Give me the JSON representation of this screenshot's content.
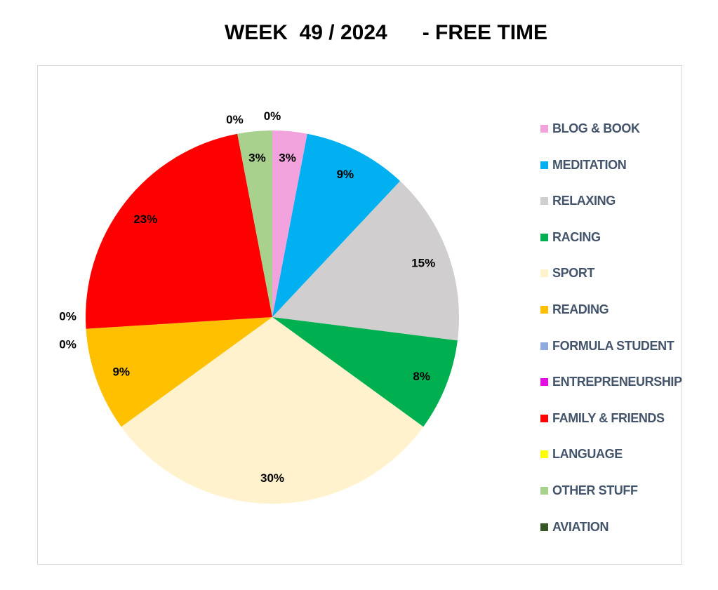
{
  "chart_data": {
    "type": "pie",
    "title": "WEEK  49 / 2024      - FREE TIME",
    "legend_position": "right",
    "slices": [
      {
        "name": "BLOG & BOOK",
        "value": 3,
        "label": "3%",
        "color": "#f2a2dc"
      },
      {
        "name": "MEDITATION",
        "value": 9,
        "label": "9%",
        "color": "#00b0f0"
      },
      {
        "name": "RELAXING",
        "value": 15,
        "label": "15%",
        "color": "#d0cece"
      },
      {
        "name": "RACING",
        "value": 8,
        "label": "8%",
        "color": "#00b050"
      },
      {
        "name": "SPORT",
        "value": 30,
        "label": "30%",
        "color": "#fff2cc"
      },
      {
        "name": "READING",
        "value": 9,
        "label": "9%",
        "color": "#ffc000"
      },
      {
        "name": "FORMULA STUDENT",
        "value": 0,
        "label": "0%",
        "color": "#8faadc"
      },
      {
        "name": "ENTREPRENEURSHIP",
        "value": 0,
        "label": "0%",
        "color": "#e30ee3"
      },
      {
        "name": "FAMILY & FRIENDS",
        "value": 23,
        "label": "23%",
        "color": "#ff0000"
      },
      {
        "name": "LANGUAGE",
        "value": 0,
        "label": "0%",
        "color": "#ffff00"
      },
      {
        "name": "OTHER STUFF",
        "value": 3,
        "label": "3%",
        "color": "#a9d18e"
      },
      {
        "name": "AVIATION",
        "value": 0,
        "label": "0%",
        "color": "#375623"
      }
    ]
  }
}
